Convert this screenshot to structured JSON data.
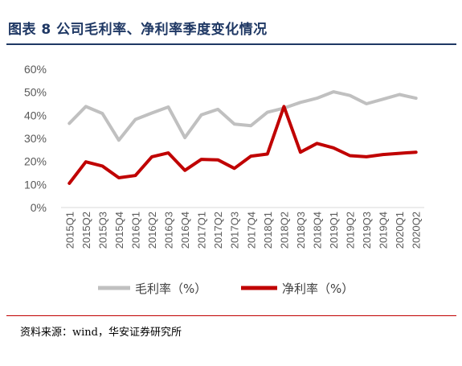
{
  "title": "图表 8 公司毛利率、净利率季度变化情况",
  "source": "资料来源：wind，华安证券研究所",
  "colors": {
    "title": "#1f3864",
    "gross": "#c0c0c0",
    "net": "#c00000",
    "axis_text": "#595959",
    "rule": "#c00000"
  },
  "chart_data": {
    "type": "line",
    "title": "",
    "xlabel": "",
    "ylabel": "",
    "ylim": [
      0,
      60
    ],
    "yticks": [
      "0%",
      "10%",
      "20%",
      "30%",
      "40%",
      "50%",
      "60%"
    ],
    "grid": false,
    "legend_position": "bottom",
    "categories": [
      "2015Q1",
      "2015Q2",
      "2015Q3",
      "2015Q4",
      "2016Q1",
      "2016Q2",
      "2016Q3",
      "2016Q4",
      "2017Q1",
      "2017Q2",
      "2017Q3",
      "2017Q4",
      "2018Q1",
      "2018Q2",
      "2018Q3",
      "2018Q4",
      "2019Q1",
      "2019Q2",
      "2019Q3",
      "2019Q4",
      "2020Q1",
      "2020Q2"
    ],
    "series": [
      {
        "name": "毛利率（%）",
        "color": "#c0c0c0",
        "values": [
          36.5,
          43.8,
          40.8,
          29.2,
          38.2,
          41.0,
          43.6,
          30.3,
          40.2,
          42.6,
          36.2,
          35.5,
          41.3,
          43.1,
          45.6,
          47.4,
          50.2,
          48.6,
          45.0,
          47.0,
          49.0,
          47.4
        ]
      },
      {
        "name": "净利率（%）",
        "color": "#c00000",
        "values": [
          10.5,
          19.8,
          18.0,
          12.9,
          13.9,
          22.0,
          23.7,
          16.1,
          20.9,
          20.7,
          17.0,
          22.3,
          23.2,
          43.8,
          24.0,
          27.8,
          25.9,
          22.5,
          22.0,
          23.0,
          23.5,
          24.0
        ]
      }
    ]
  }
}
